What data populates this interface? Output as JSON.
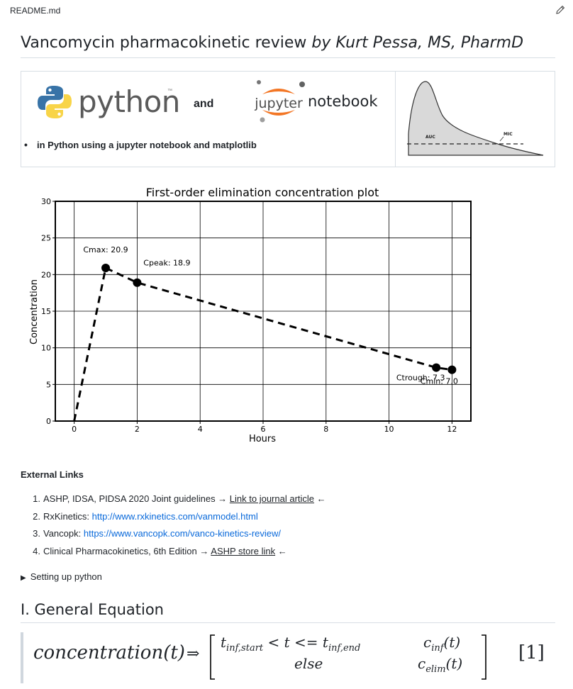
{
  "header": {
    "file_name": "README.md",
    "edit_icon": "pencil-icon"
  },
  "readme": {
    "title": "Vancomycin pharmacokinetic review",
    "author": "by Kurt Pessa, MS, PharmD"
  },
  "banner": {
    "python_logo_text": "python",
    "python_tm": "™",
    "and_text": "and",
    "jupyter_logo_text": "jupyter",
    "notebook_text": "notebook",
    "bullet": "in Python using a jupyter notebook and matplotlib",
    "curve_labels": {
      "auc": "AUC",
      "mic": "MIC"
    }
  },
  "chart_data": {
    "type": "line",
    "title": "First-order elimination concentration plot",
    "xlabel": "Hours",
    "ylabel": "Concentration",
    "xlim": [
      -0.6,
      12.6
    ],
    "ylim": [
      0,
      30
    ],
    "xticks": [
      0,
      2,
      4,
      6,
      8,
      10,
      12
    ],
    "yticks": [
      0,
      5,
      10,
      15,
      20,
      25,
      30
    ],
    "grid": true,
    "line_style": "dashed",
    "line_color": "#000000",
    "x": [
      0,
      1,
      2,
      11.5,
      12
    ],
    "y": [
      0,
      20.9,
      18.9,
      7.3,
      7.0
    ],
    "markers": [
      {
        "x": 1,
        "y": 20.9,
        "label": "Cmax: 20.9"
      },
      {
        "x": 2,
        "y": 18.9,
        "label": "Cpeak: 18.9"
      },
      {
        "x": 11.5,
        "y": 7.3,
        "label": "Ctrough: 7.3"
      },
      {
        "x": 12,
        "y": 7.0,
        "label": "Cmin: 7.0"
      }
    ]
  },
  "external_links": {
    "heading": "External Links",
    "items": [
      {
        "num": "1.",
        "prefix": "ASHP, IDSA, PIDSA 2020 Joint guidelines →",
        "link": "Link to journal article",
        "suffix": "←"
      },
      {
        "num": "2.",
        "prefix": "RxKinetics:",
        "link": "http://www.rxkinetics.com/vanmodel.html",
        "suffix": ""
      },
      {
        "num": "3.",
        "prefix": "Vancopk:",
        "link": "https://www.vancopk.com/vanco-kinetics-review/",
        "suffix": ""
      },
      {
        "num": "4.",
        "prefix": "Clinical Pharmacokinetics, 6th Edition →",
        "link": "ASHP store link",
        "suffix": "←"
      }
    ]
  },
  "details": {
    "marker": "▶",
    "summary": "Setting up python"
  },
  "general": {
    "heading": "I. General Equation"
  },
  "equation": {
    "lhs": "concentration(t)",
    "arrow": "⇒",
    "row1_cond_t": "t",
    "row1_cond_sub1": "inf,start",
    "row1_cond_mid": " < t <= t",
    "row1_cond_sub2": "inf,end",
    "row1_val": "c",
    "row1_val_sub": "inf",
    "row1_val_arg": "(t)",
    "row2_cond": "else",
    "row2_val": "c",
    "row2_val_sub": "elim",
    "row2_val_arg": "(t)",
    "tag": "[1]"
  }
}
